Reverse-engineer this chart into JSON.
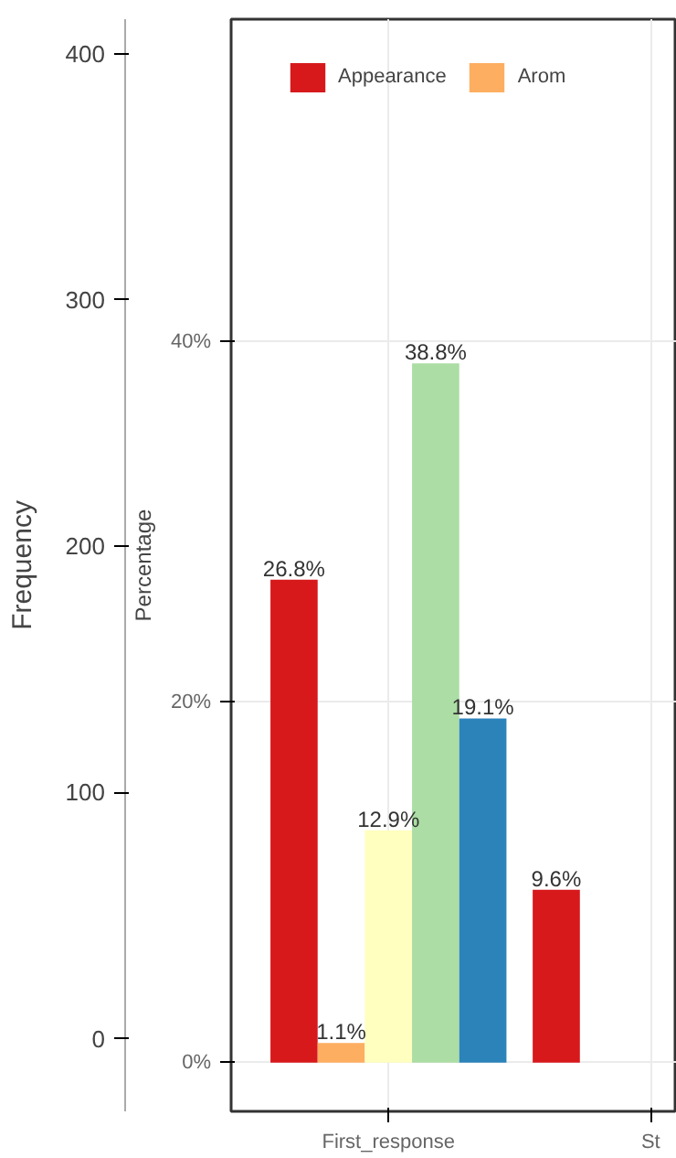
{
  "chart_data": {
    "type": "bar",
    "categories": [
      "First_response",
      "St"
    ],
    "ylabel": "Percentage",
    "y2label": "Frequency",
    "ylim": [
      -2.7,
      57.9
    ],
    "yticks": [
      {
        "value": 0,
        "label": "0%"
      },
      {
        "value": 20,
        "label": "20%"
      },
      {
        "value": 40,
        "label": "40%"
      }
    ],
    "y2lim": [
      -29.5,
      414
    ],
    "y2ticks": [
      0,
      100,
      200,
      300,
      400
    ],
    "grid": true,
    "legend": "top",
    "series": [
      {
        "name": "Appearance",
        "color": "#d7191c",
        "values": [
          26.8,
          9.6
        ],
        "value_labels": [
          "26.8%",
          "9.6%"
        ]
      },
      {
        "name": "Arom",
        "color": "#fdae61",
        "values": [
          1.1,
          null
        ],
        "value_labels": [
          "1.1%",
          null
        ]
      },
      {
        "color": "#ffffbf",
        "values": [
          12.9,
          null
        ],
        "value_labels": [
          "12.9%",
          null
        ]
      },
      {
        "color": "#abdda4",
        "values": [
          38.8,
          null
        ],
        "value_labels": [
          "38.8%",
          null
        ]
      },
      {
        "color": "#2b83ba",
        "values": [
          19.1,
          null
        ],
        "value_labels": [
          "19.1%",
          null
        ]
      }
    ]
  }
}
